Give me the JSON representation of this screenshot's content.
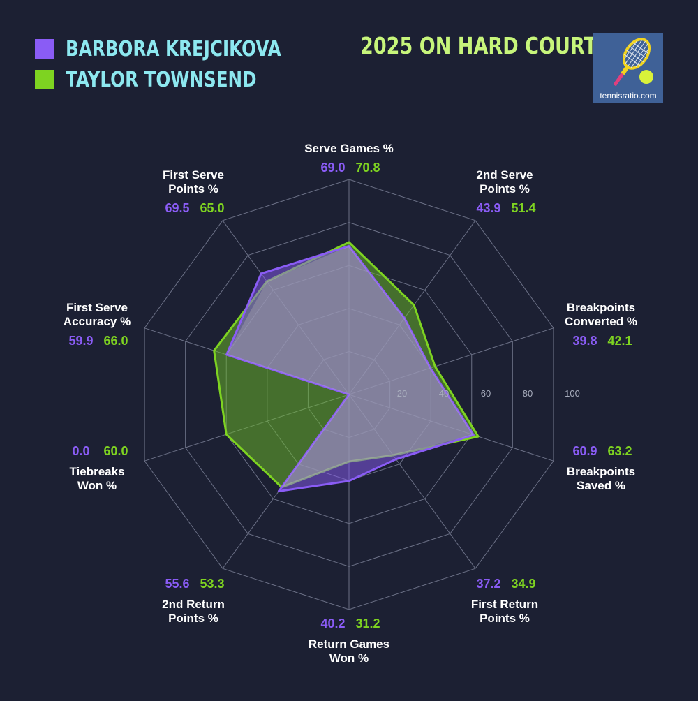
{
  "legend": {
    "player1": "BARBORA KREJCIKOVA",
    "player2": "TAYLOR TOWNSEND"
  },
  "title": "2025 ON HARD COURTS",
  "logo": {
    "text": "tennisratio.com",
    "icon": "tennis-racket-icon"
  },
  "colors": {
    "background": "#1c2033",
    "player1": "#8a5cf5",
    "player2": "#7ed321",
    "legend_text": "#8de8f0",
    "title": "#c7f57b",
    "grid": "#6b7086"
  },
  "chart_data": {
    "type": "radar",
    "title": "2025 ON HARD COURTS",
    "range": [
      0,
      100
    ],
    "rings": [
      20,
      40,
      60,
      80,
      100
    ],
    "tick_labels": [
      "20",
      "40",
      "60",
      "80",
      "100"
    ],
    "axes": [
      {
        "lines": [
          "Serve Games %"
        ]
      },
      {
        "lines": [
          "2nd Serve",
          "Points %"
        ]
      },
      {
        "lines": [
          "Breakpoints",
          "Converted %"
        ]
      },
      {
        "lines": [
          "Breakpoints",
          "Saved %"
        ]
      },
      {
        "lines": [
          "First Return",
          "Points %"
        ]
      },
      {
        "lines": [
          "Return Games",
          "Won %"
        ]
      },
      {
        "lines": [
          "2nd Return",
          "Points %"
        ]
      },
      {
        "lines": [
          "Tiebreaks",
          "Won %"
        ]
      },
      {
        "lines": [
          "First Serve",
          "Accuracy %"
        ]
      },
      {
        "lines": [
          "First Serve",
          "Points %"
        ]
      }
    ],
    "series": [
      {
        "name": "BARBORA KREJCIKOVA",
        "values": [
          69.0,
          43.9,
          39.8,
          60.9,
          37.2,
          40.2,
          55.6,
          0.0,
          59.9,
          69.5
        ],
        "labels": [
          "69.0",
          "43.9",
          "39.8",
          "60.9",
          "37.2",
          "40.2",
          "55.6",
          "0.0",
          "59.9",
          "69.5"
        ]
      },
      {
        "name": "TAYLOR TOWNSEND",
        "values": [
          70.8,
          51.4,
          42.1,
          63.2,
          34.9,
          31.2,
          53.3,
          60.0,
          66.0,
          65.0
        ],
        "labels": [
          "70.8",
          "51.4",
          "42.1",
          "63.2",
          "34.9",
          "31.2",
          "53.3",
          "60.0",
          "66.0",
          "65.0"
        ]
      }
    ],
    "legend": "top-left"
  }
}
